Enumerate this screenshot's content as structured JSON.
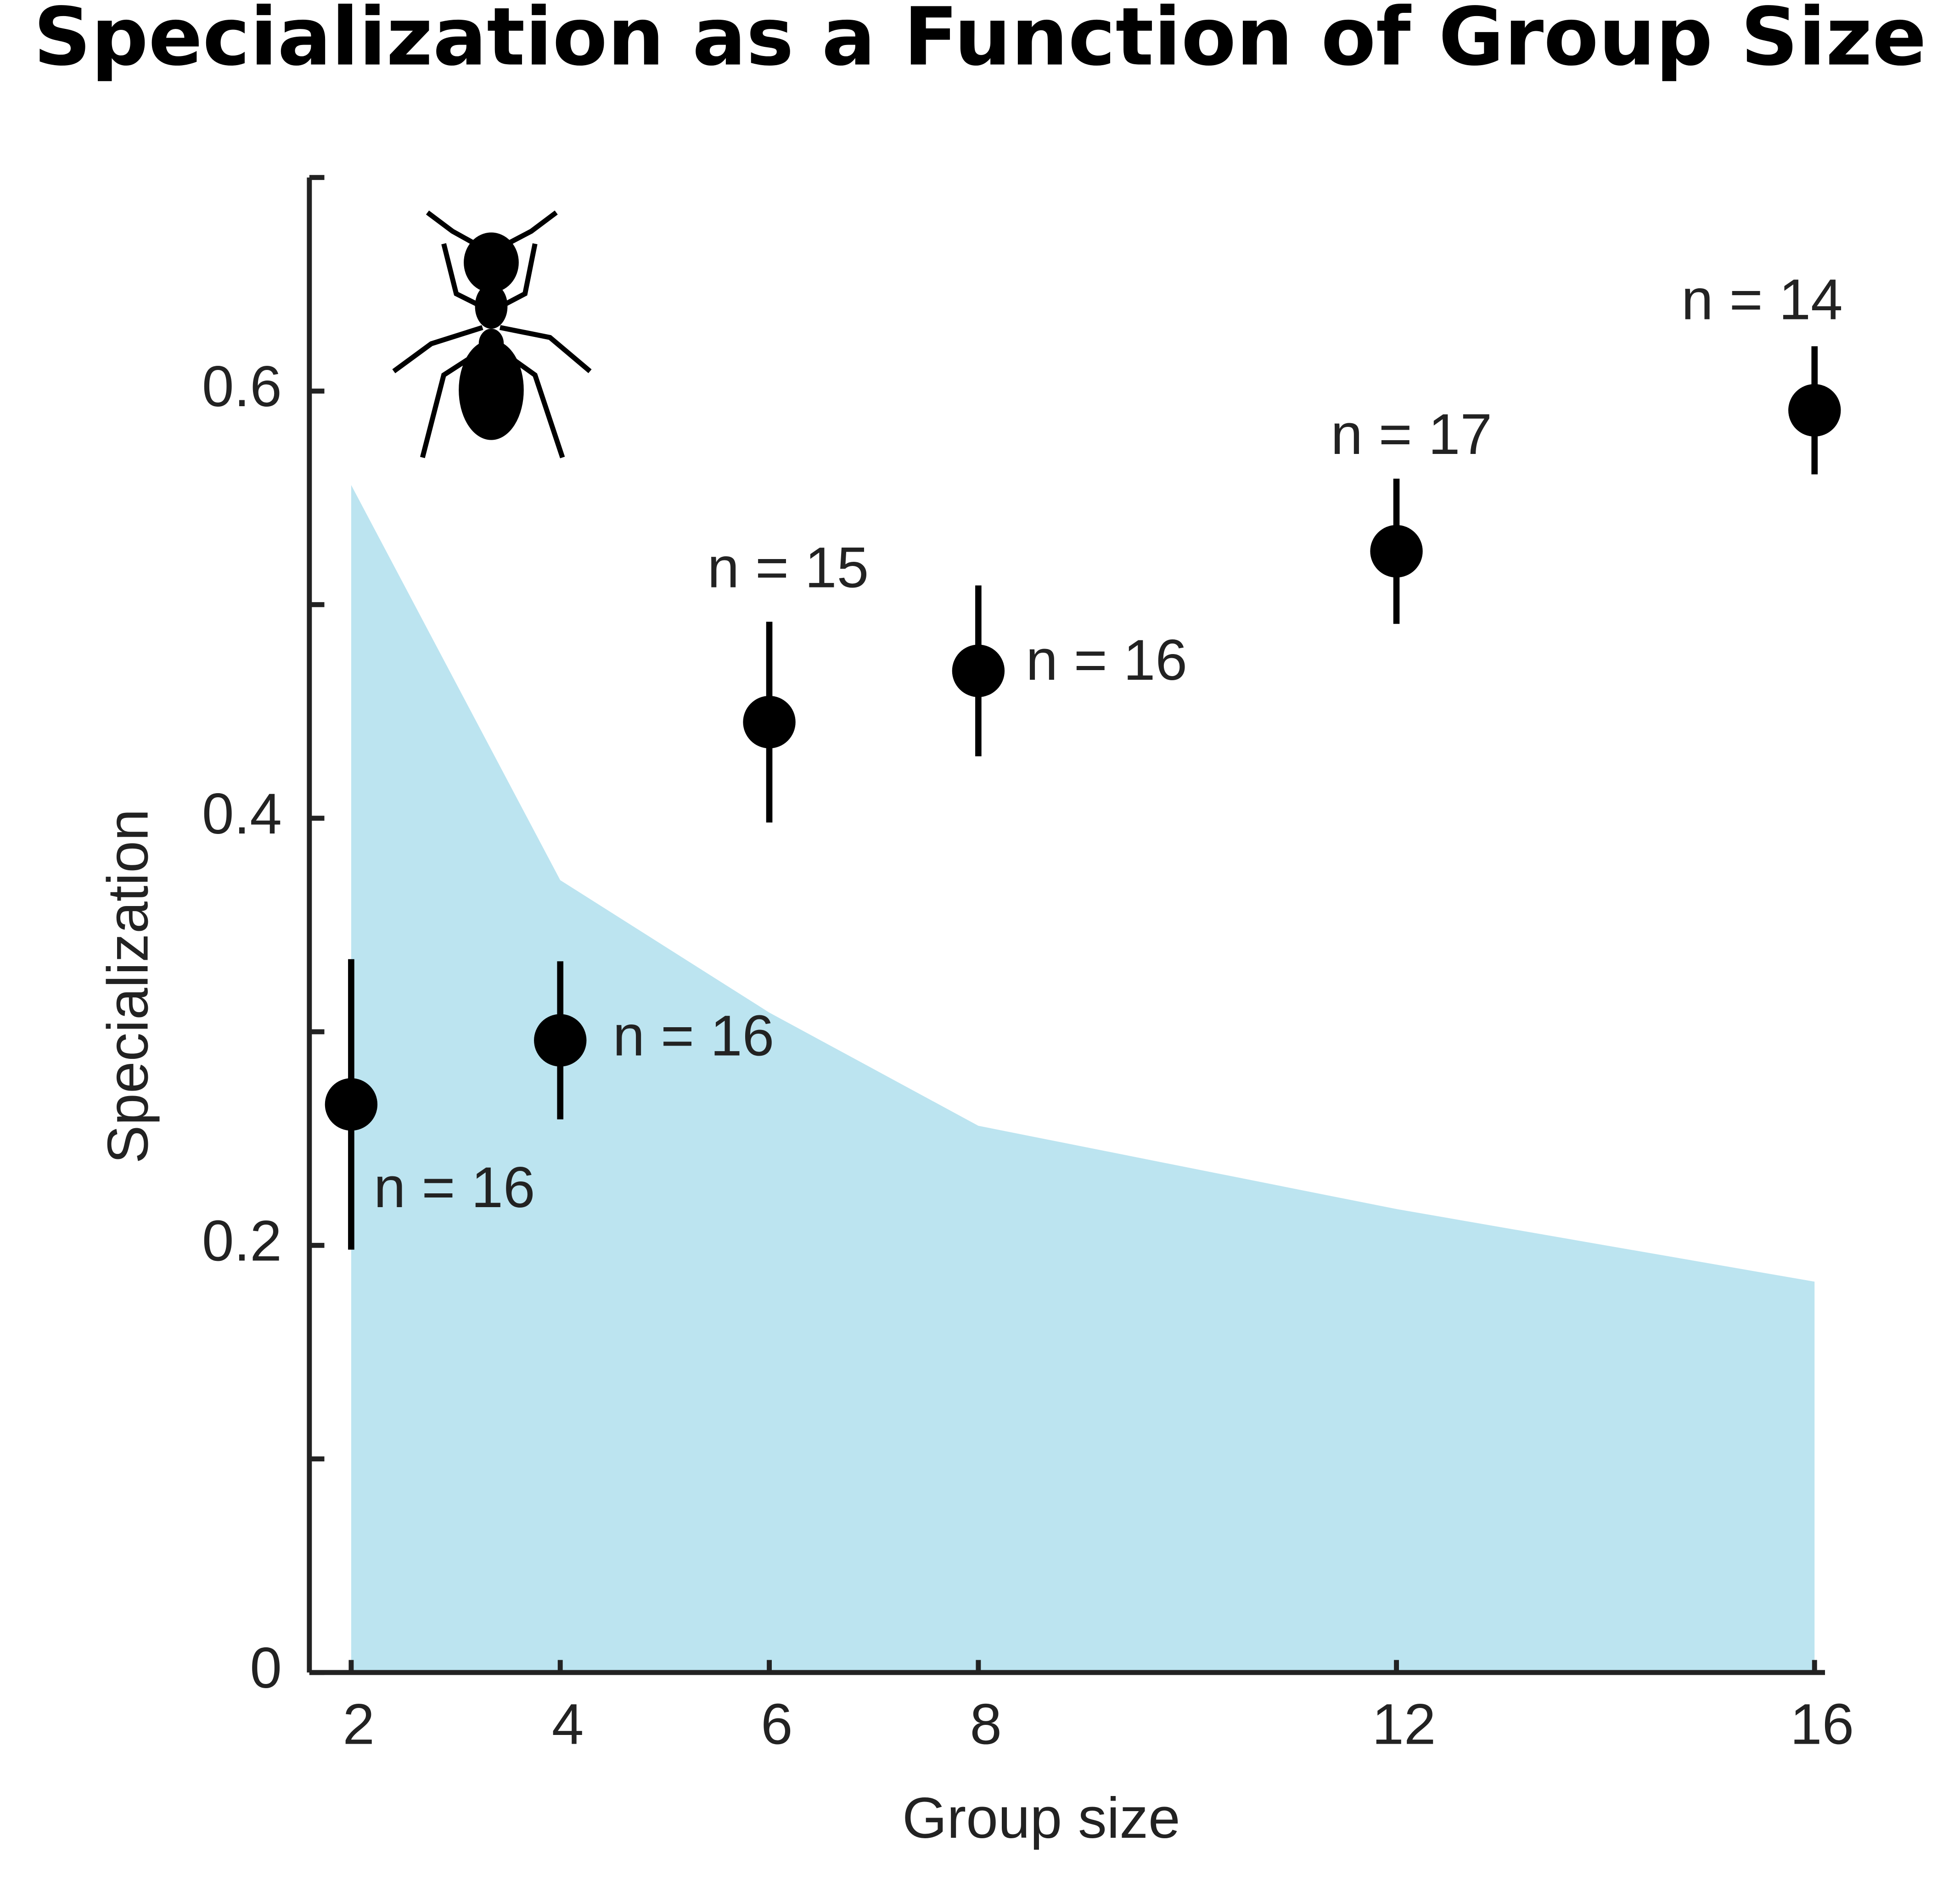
{
  "chart_data": {
    "type": "scatter",
    "title": "Specialization as a Function of Group Size",
    "xlabel": "Group size",
    "ylabel": "Specialization",
    "x": [
      2,
      4,
      6,
      8,
      12,
      16
    ],
    "values": [
      0.266,
      0.296,
      0.445,
      0.469,
      0.525,
      0.591
    ],
    "errors": [
      0.068,
      0.037,
      0.047,
      0.04,
      0.034,
      0.03
    ],
    "annotations": [
      "n = 16",
      "n = 16",
      "n = 15",
      "n = 16",
      "n = 17",
      "n = 14"
    ],
    "color": "#000000",
    "area": {
      "values": [
        0.556,
        0.371,
        0.309,
        0.256,
        0.217,
        0.183
      ],
      "color": "#bce4f0"
    },
    "xlim": [
      1.6,
      16.1
    ],
    "ylim": [
      0,
      0.7
    ],
    "xticks": [
      2,
      4,
      6,
      8,
      12,
      16
    ],
    "yticks": [
      0,
      0.2,
      0.4,
      0.6
    ],
    "yminor_ticks": [
      0.1,
      0.3,
      0.5
    ]
  }
}
